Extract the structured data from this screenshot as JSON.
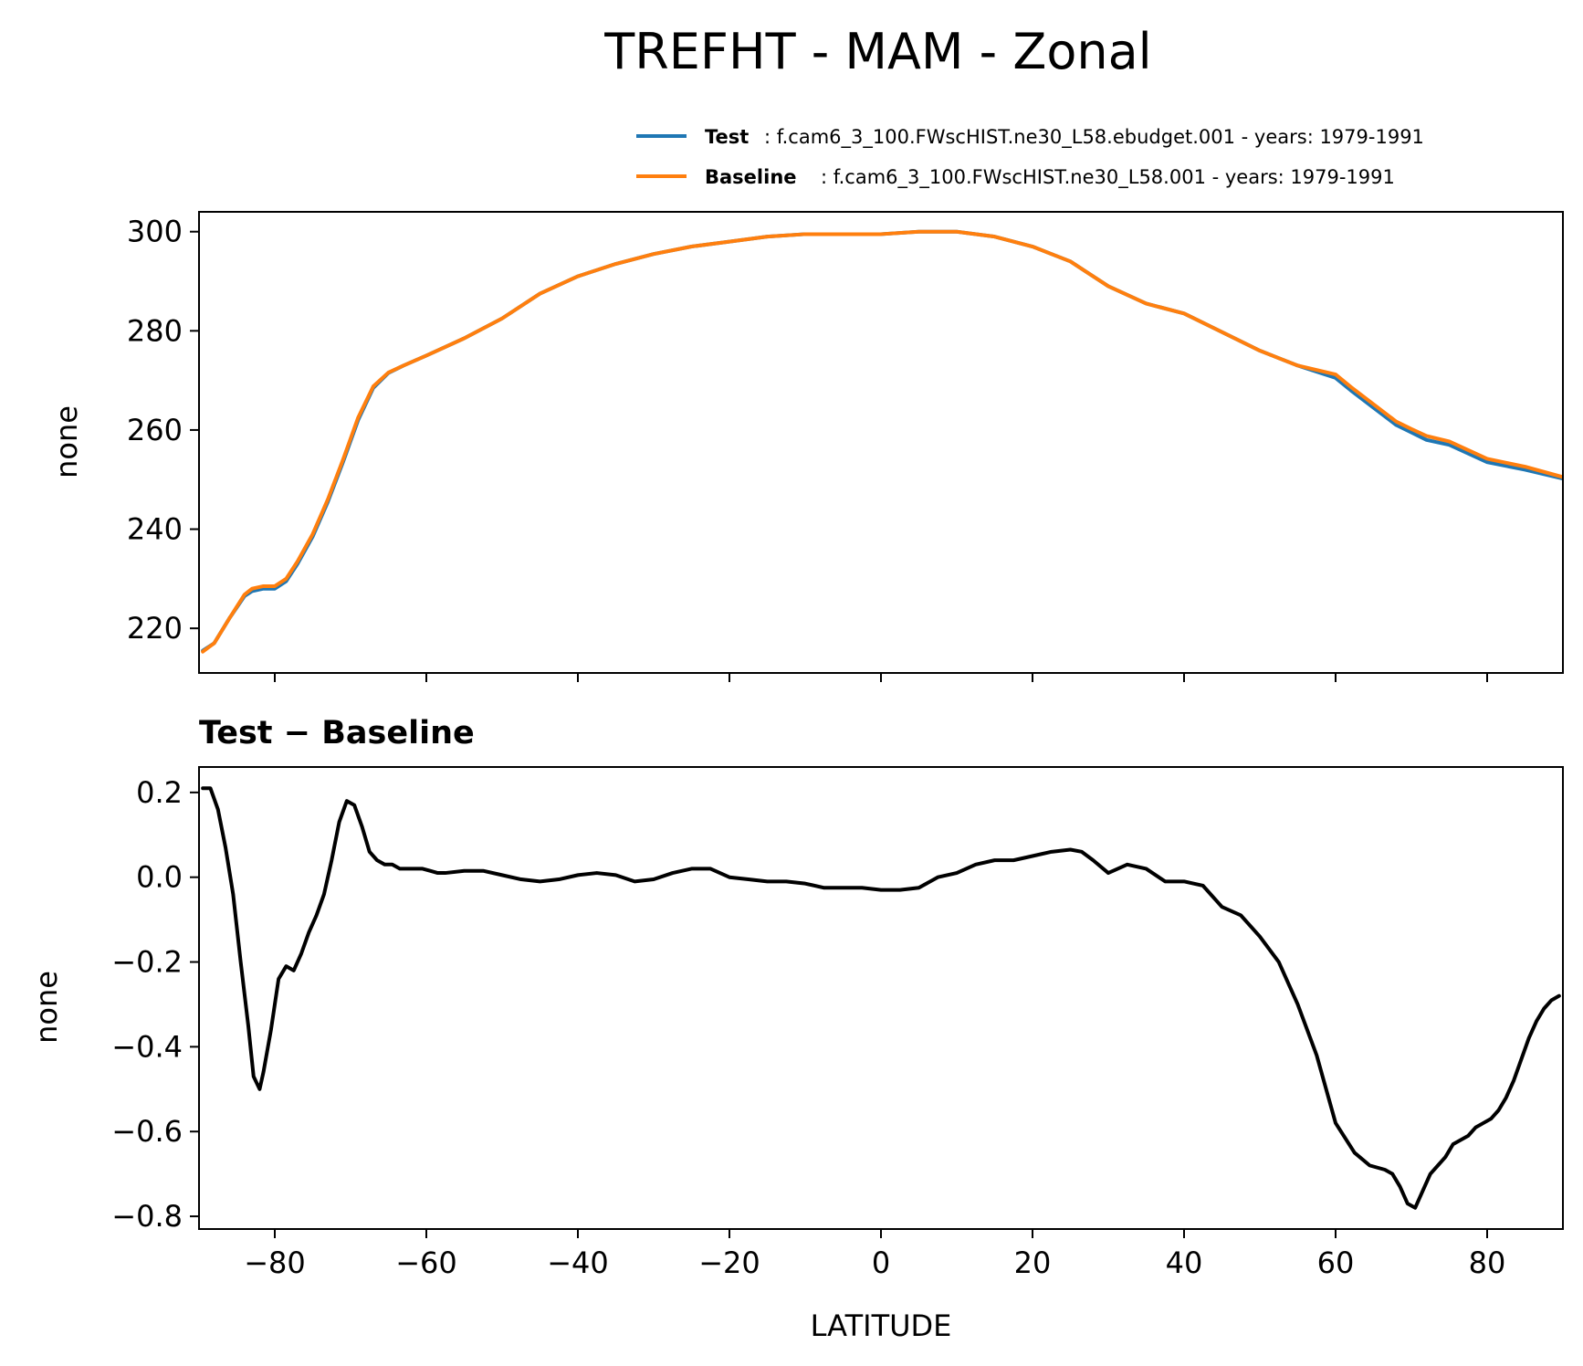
{
  "title": "TREFHT - MAM - Zonal",
  "colors": {
    "test": "#1f77b4",
    "baseline": "#ff7f0e",
    "diff": "#000000"
  },
  "legend": {
    "test_label": "Test",
    "test_desc": ": f.cam6_3_100.FWscHIST.ne30_L58.ebudget.001 - years: 1979-1991",
    "baseline_label": "Baseline",
    "baseline_desc": ": f.cam6_3_100.FWscHIST.ne30_L58.001 - years: 1979-1991"
  },
  "chart_data": [
    {
      "type": "line",
      "panel": "top",
      "title": "TREFHT - MAM - Zonal",
      "xlabel": "",
      "ylabel": "none",
      "xlim": [
        -90,
        90
      ],
      "ylim": [
        211,
        304
      ],
      "yticks": [
        220,
        240,
        260,
        280,
        300
      ],
      "xticks": [
        -80,
        -60,
        -40,
        -20,
        0,
        20,
        40,
        60,
        80
      ],
      "legend_position": "upper-right (above axes)",
      "x": [
        -89.5,
        -88,
        -86,
        -84,
        -83,
        -81.5,
        -80,
        -78.5,
        -77,
        -75,
        -73,
        -71,
        -69,
        -67,
        -65,
        -63,
        -60,
        -55,
        -50,
        -45,
        -40,
        -35,
        -30,
        -25,
        -20,
        -15,
        -10,
        -5,
        0,
        5,
        10,
        15,
        20,
        25,
        27,
        30,
        35,
        40,
        42,
        50,
        55,
        60,
        62,
        65,
        68,
        70,
        72,
        75,
        80,
        85,
        90
      ],
      "series": [
        {
          "name": "Test",
          "color": "#1f77b4",
          "values": [
            215.5,
            217,
            222,
            226.5,
            227.5,
            228,
            228,
            229.5,
            233,
            238.5,
            245.5,
            253.5,
            262,
            268.5,
            271.5,
            273,
            275,
            278.5,
            282.5,
            287.5,
            291,
            293.5,
            295.5,
            297,
            298,
            299,
            299.5,
            299.5,
            299.5,
            300,
            300,
            299,
            297,
            294,
            292,
            289,
            285.5,
            283.5,
            282,
            276,
            273,
            270.5,
            268,
            264.5,
            261,
            259.5,
            258,
            257,
            253.5,
            252,
            250.2
          ]
        },
        {
          "name": "Baseline",
          "color": "#ff7f0e",
          "values": [
            215.3,
            217,
            222,
            226.8,
            228,
            228.5,
            228.5,
            230,
            233.5,
            239,
            246,
            254,
            262.5,
            268.8,
            271.6,
            273,
            275,
            278.5,
            282.5,
            287.5,
            291,
            293.5,
            295.5,
            297,
            298,
            299,
            299.5,
            299.5,
            299.5,
            300,
            300,
            299,
            297,
            294,
            292,
            289,
            285.5,
            283.5,
            282,
            276,
            273,
            271.2,
            268.7,
            265.2,
            261.7,
            260.2,
            258.8,
            257.7,
            254.2,
            252.6,
            250.5
          ]
        }
      ]
    },
    {
      "type": "line",
      "panel": "bottom",
      "title": "Test − Baseline",
      "xlabel": "LATITUDE",
      "ylabel": "none",
      "xlim": [
        -90,
        90
      ],
      "ylim": [
        -0.83,
        0.26
      ],
      "yticks": [
        0.2,
        0.0,
        -0.2,
        -0.4,
        -0.6,
        -0.8
      ],
      "ytick_labels": [
        "0.2",
        "0.0",
        "−0.2",
        "−0.4",
        "−0.6",
        "−0.8"
      ],
      "xticks": [
        -80,
        -60,
        -40,
        -20,
        0,
        20,
        40,
        60,
        80
      ],
      "xtick_labels": [
        "−80",
        "−60",
        "−40",
        "−20",
        "0",
        "20",
        "40",
        "60",
        "80"
      ],
      "series": [
        {
          "name": "Test − Baseline",
          "color": "#000000",
          "x": [
            -89.5,
            -88.5,
            -87.5,
            -86.5,
            -85.5,
            -84.5,
            -83.5,
            -82.8,
            -82,
            -81.5,
            -80.5,
            -79.5,
            -78.5,
            -77.5,
            -76.5,
            -75.5,
            -74.5,
            -73.5,
            -72.5,
            -71.5,
            -70.5,
            -69.5,
            -68.5,
            -67.5,
            -66.5,
            -65.5,
            -64.5,
            -63.5,
            -62.5,
            -61.5,
            -60.5,
            -59.5,
            -58.5,
            -57.5,
            -55,
            -52.5,
            -50,
            -47.5,
            -45,
            -42.5,
            -40,
            -37.5,
            -35,
            -32.5,
            -30,
            -27.5,
            -25,
            -22.5,
            -20,
            -17.5,
            -15,
            -12.5,
            -10,
            -7.5,
            -5,
            -2.5,
            0,
            2.5,
            5,
            7.5,
            10,
            12.5,
            15,
            17.5,
            20,
            22.5,
            25,
            26.5,
            28,
            30,
            32.5,
            35,
            37.5,
            40,
            42.5,
            45,
            47.5,
            50,
            52.5,
            55,
            57.5,
            60,
            62.5,
            64.5,
            66.5,
            67.5,
            68.5,
            69.5,
            70.5,
            71.5,
            72.5,
            73.5,
            74.5,
            75.5,
            76.5,
            77.5,
            78.5,
            79.5,
            80.5,
            81.5,
            82.5,
            83.5,
            84.5,
            85.5,
            86.5,
            87.5,
            88.5,
            89.5
          ],
          "values": [
            0.21,
            0.21,
            0.16,
            0.07,
            -0.04,
            -0.2,
            -0.35,
            -0.47,
            -0.5,
            -0.46,
            -0.36,
            -0.24,
            -0.21,
            -0.22,
            -0.18,
            -0.13,
            -0.09,
            -0.04,
            0.04,
            0.13,
            0.18,
            0.17,
            0.12,
            0.06,
            0.04,
            0.03,
            0.03,
            0.02,
            0.02,
            0.02,
            0.02,
            0.015,
            0.01,
            0.01,
            0.015,
            0.015,
            0.005,
            -0.005,
            -0.01,
            -0.005,
            0.005,
            0.01,
            0.005,
            -0.01,
            -0.005,
            0.01,
            0.02,
            0.02,
            0.0,
            -0.005,
            -0.01,
            -0.01,
            -0.015,
            -0.025,
            -0.025,
            -0.025,
            -0.03,
            -0.03,
            -0.025,
            0.0,
            0.01,
            0.03,
            0.04,
            0.04,
            0.05,
            0.06,
            0.065,
            0.06,
            0.04,
            0.01,
            0.03,
            0.02,
            -0.01,
            -0.01,
            -0.02,
            -0.07,
            -0.09,
            -0.14,
            -0.2,
            -0.3,
            -0.42,
            -0.58,
            -0.65,
            -0.68,
            -0.69,
            -0.7,
            -0.73,
            -0.77,
            -0.78,
            -0.74,
            -0.7,
            -0.68,
            -0.66,
            -0.63,
            -0.62,
            -0.61,
            -0.59,
            -0.58,
            -0.57,
            -0.55,
            -0.52,
            -0.48,
            -0.43,
            -0.38,
            -0.34,
            -0.31,
            -0.29,
            -0.28
          ]
        }
      ]
    }
  ]
}
